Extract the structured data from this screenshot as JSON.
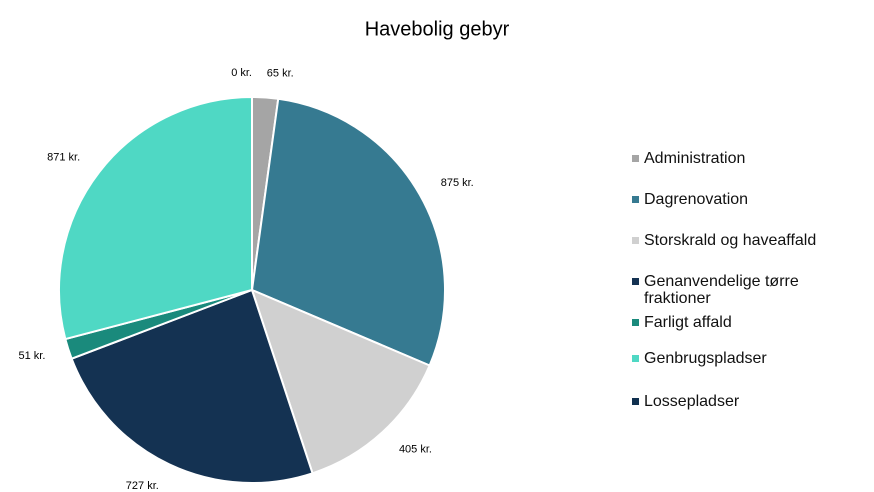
{
  "chart_data": {
    "type": "pie",
    "title": "Havebolig gebyr",
    "categories": [
      "Administration",
      "Dagrenovation",
      "Storskrald og haveaffald",
      "Genanvendelige tørre fraktioner",
      "Farligt affald",
      "Genbrugspladser",
      "Lossepladser"
    ],
    "values": [
      65,
      875,
      405,
      727,
      51,
      871,
      0
    ],
    "value_labels": [
      "65 kr.",
      "875 kr.",
      "405 kr.",
      "727 kr.",
      "51 kr.",
      "871 kr.",
      "0 kr."
    ],
    "colors": [
      "#a5a5a5",
      "#367a91",
      "#d0d0d0",
      "#143252",
      "#1a8a7c",
      "#4fd8c4",
      "#10304f"
    ],
    "legend": "right"
  }
}
